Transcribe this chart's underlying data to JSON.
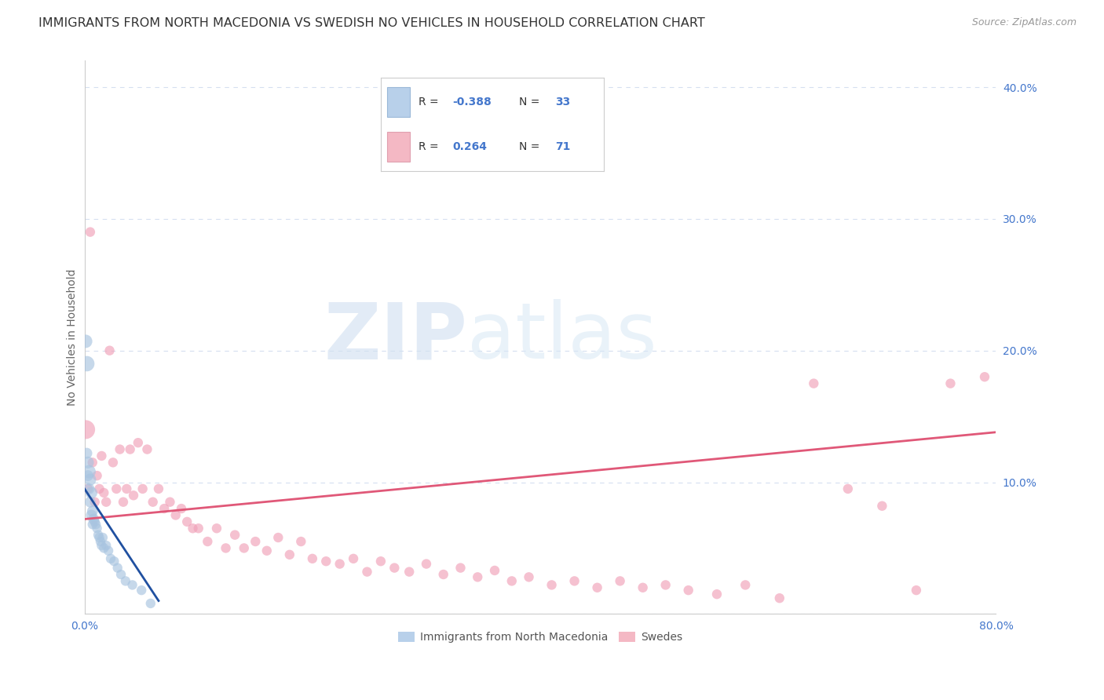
{
  "title": "IMMIGRANTS FROM NORTH MACEDONIA VS SWEDISH NO VEHICLES IN HOUSEHOLD CORRELATION CHART",
  "source": "Source: ZipAtlas.com",
  "ylabel": "No Vehicles in Household",
  "xlim": [
    0.0,
    0.8
  ],
  "ylim": [
    0.0,
    0.42
  ],
  "xticks": [
    0.0,
    0.1,
    0.2,
    0.3,
    0.4,
    0.5,
    0.6,
    0.7,
    0.8
  ],
  "yticks": [
    0.0,
    0.1,
    0.2,
    0.3,
    0.4
  ],
  "xticklabels": [
    "0.0%",
    "",
    "",
    "",
    "",
    "",
    "",
    "",
    "80.0%"
  ],
  "yticklabels": [
    "",
    "10.0%",
    "20.0%",
    "30.0%",
    "40.0%"
  ],
  "blue_color": "#a8c4e0",
  "pink_color": "#f0a0b8",
  "blue_line_color": "#2050a0",
  "pink_line_color": "#e05878",
  "watermark_zip": "ZIP",
  "watermark_atlas": "atlas",
  "legend_label_blue": "Immigrants from North Macedonia",
  "legend_label_pink": "Swedes",
  "background_color": "#ffffff",
  "axis_color": "#4477cc",
  "grid_color": "#d5dff0",
  "title_fontsize": 11.5,
  "source_fontsize": 9,
  "tick_fontsize": 10,
  "ylabel_fontsize": 10,
  "blue_R": "-0.388",
  "blue_N": "33",
  "pink_R": "0.264",
  "pink_N": "71",
  "blue_scatter_x": [
    0.001,
    0.002,
    0.002,
    0.003,
    0.003,
    0.004,
    0.004,
    0.005,
    0.005,
    0.006,
    0.006,
    0.007,
    0.007,
    0.008,
    0.009,
    0.01,
    0.011,
    0.012,
    0.013,
    0.014,
    0.015,
    0.016,
    0.017,
    0.019,
    0.021,
    0.023,
    0.026,
    0.029,
    0.032,
    0.036,
    0.042,
    0.05,
    0.058
  ],
  "blue_scatter_y": [
    0.207,
    0.122,
    0.19,
    0.115,
    0.105,
    0.108,
    0.095,
    0.102,
    0.085,
    0.092,
    0.075,
    0.078,
    0.068,
    0.072,
    0.07,
    0.068,
    0.065,
    0.06,
    0.058,
    0.055,
    0.052,
    0.058,
    0.05,
    0.052,
    0.048,
    0.042,
    0.04,
    0.035,
    0.03,
    0.025,
    0.022,
    0.018,
    0.008
  ],
  "blue_scatter_size": [
    150,
    100,
    200,
    120,
    100,
    150,
    100,
    120,
    100,
    120,
    100,
    100,
    80,
    100,
    80,
    80,
    80,
    80,
    80,
    80,
    80,
    80,
    80,
    80,
    80,
    80,
    80,
    80,
    80,
    80,
    80,
    80,
    80
  ],
  "pink_scatter_x": [
    0.001,
    0.003,
    0.005,
    0.007,
    0.009,
    0.011,
    0.013,
    0.015,
    0.017,
    0.019,
    0.022,
    0.025,
    0.028,
    0.031,
    0.034,
    0.037,
    0.04,
    0.043,
    0.047,
    0.051,
    0.055,
    0.06,
    0.065,
    0.07,
    0.075,
    0.08,
    0.085,
    0.09,
    0.095,
    0.1,
    0.108,
    0.116,
    0.124,
    0.132,
    0.14,
    0.15,
    0.16,
    0.17,
    0.18,
    0.19,
    0.2,
    0.212,
    0.224,
    0.236,
    0.248,
    0.26,
    0.272,
    0.285,
    0.3,
    0.315,
    0.33,
    0.345,
    0.36,
    0.375,
    0.39,
    0.41,
    0.43,
    0.45,
    0.47,
    0.49,
    0.51,
    0.53,
    0.555,
    0.58,
    0.61,
    0.64,
    0.67,
    0.7,
    0.73,
    0.76,
    0.79
  ],
  "pink_scatter_y": [
    0.14,
    0.095,
    0.29,
    0.115,
    0.085,
    0.105,
    0.095,
    0.12,
    0.092,
    0.085,
    0.2,
    0.115,
    0.095,
    0.125,
    0.085,
    0.095,
    0.125,
    0.09,
    0.13,
    0.095,
    0.125,
    0.085,
    0.095,
    0.08,
    0.085,
    0.075,
    0.08,
    0.07,
    0.065,
    0.065,
    0.055,
    0.065,
    0.05,
    0.06,
    0.05,
    0.055,
    0.048,
    0.058,
    0.045,
    0.055,
    0.042,
    0.04,
    0.038,
    0.042,
    0.032,
    0.04,
    0.035,
    0.032,
    0.038,
    0.03,
    0.035,
    0.028,
    0.033,
    0.025,
    0.028,
    0.022,
    0.025,
    0.02,
    0.025,
    0.02,
    0.022,
    0.018,
    0.015,
    0.022,
    0.012,
    0.175,
    0.095,
    0.082,
    0.018,
    0.175,
    0.18
  ],
  "pink_scatter_size": [
    300,
    80,
    80,
    80,
    80,
    80,
    80,
    80,
    80,
    80,
    80,
    80,
    80,
    80,
    80,
    80,
    80,
    80,
    80,
    80,
    80,
    80,
    80,
    80,
    80,
    80,
    80,
    80,
    80,
    80,
    80,
    80,
    80,
    80,
    80,
    80,
    80,
    80,
    80,
    80,
    80,
    80,
    80,
    80,
    80,
    80,
    80,
    80,
    80,
    80,
    80,
    80,
    80,
    80,
    80,
    80,
    80,
    80,
    80,
    80,
    80,
    80,
    80,
    80,
    80,
    80,
    80,
    80,
    80,
    80,
    80
  ],
  "blue_trend_x": [
    0.0,
    0.065
  ],
  "blue_trend_y_start": 0.095,
  "blue_trend_y_end": 0.01,
  "pink_trend_x": [
    0.0,
    0.8
  ],
  "pink_trend_y_start": 0.072,
  "pink_trend_y_end": 0.138
}
